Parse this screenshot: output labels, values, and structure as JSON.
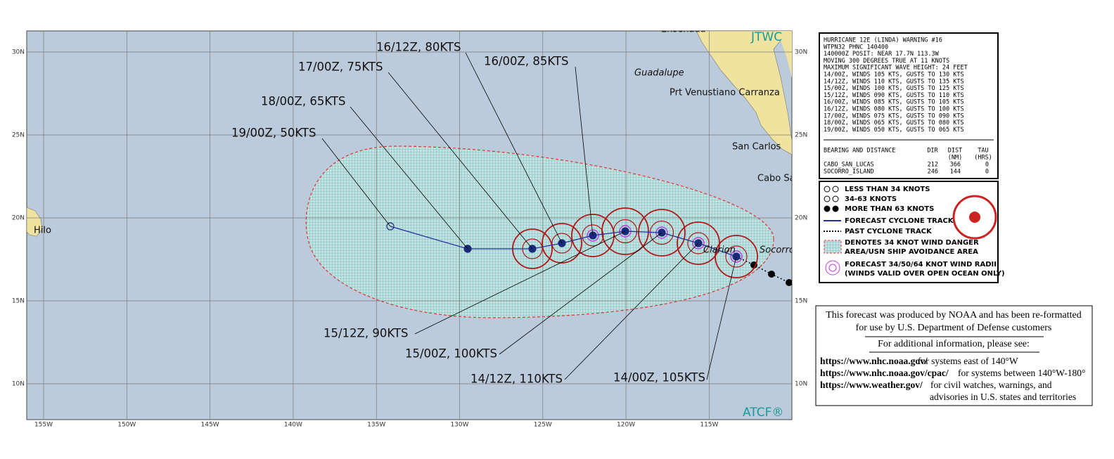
{
  "map": {
    "brand_top": "JTWC",
    "brand_bottom": "ATCF®",
    "lat_labels": [
      "30N",
      "25N",
      "20N",
      "15N",
      "10N"
    ],
    "lon_labels": [
      "155W",
      "150W",
      "145W",
      "140W",
      "135W",
      "130W",
      "125W",
      "120W",
      "115W"
    ],
    "places": [
      "Ensenada",
      "Guadalupe",
      "Prt Venustiano Carranza",
      "San Carlos",
      "Cabo Sa",
      "Hilo",
      "Clarion",
      "Socorro"
    ],
    "forecast_labels": [
      "19/00Z,  50KTS",
      "18/00Z,  65KTS",
      "17/00Z,  75KTS",
      "16/12Z,  80KTS",
      "16/00Z,  85KTS",
      "15/12Z,  90KTS",
      "15/00Z, 100KTS",
      "14/12Z, 110KTS",
      "14/00Z, 105KTS"
    ]
  },
  "warning": {
    "lines": [
      "HURRICANE 12E (LINDA) WARNING #16",
      "WTPN32 PHNC 140400",
      "140000Z POSIT: NEAR 17.7N 113.3W",
      "MOVING 300 DEGREES TRUE AT 11 KNOTS",
      "MAXIMUM SIGNIFICANT WAVE HEIGHT: 24 FEET",
      "14/00Z, WINDS 105 KTS, GUSTS TO 130 KTS",
      "14/12Z, WINDS 110 KTS, GUSTS TO 135 KTS",
      "15/00Z, WINDS 100 KTS, GUSTS TO 125 KTS",
      "15/12Z, WINDS 090 KTS, GUSTS TO 110 KTS",
      "16/00Z, WINDS 085 KTS, GUSTS TO 105 KTS",
      "16/12Z, WINDS 080 KTS, GUSTS TO 100 KTS",
      "17/00Z, WINDS 075 KTS, GUSTS TO 090 KTS",
      "18/00Z, WINDS 065 KTS, GUSTS TO 080 KTS",
      "19/00Z, WINDS 050 KTS, GUSTS TO 065 KTS"
    ],
    "table_header": [
      "BEARING AND DISTANCE",
      "DIR",
      "DIST",
      "TAU"
    ],
    "table_units": [
      "(NM)",
      "(HRS)"
    ],
    "table_rows": [
      [
        "CABO_SAN_LUCAS",
        "212",
        "366",
        "0"
      ],
      [
        "SOCORRO_ISLAND",
        "246",
        "144",
        "0"
      ]
    ]
  },
  "legend": {
    "items": [
      "LESS THAN 34 KNOTS",
      "34-63 KNOTS",
      "MORE THAN 63 KNOTS",
      "FORECAST CYCLONE TRACK",
      "PAST CYCLONE TRACK",
      "DENOTES 34 KNOT WIND DANGER",
      "AREA/USN SHIP AVOIDANCE AREA",
      "FORECAST 34/50/64 KNOT WIND RADII",
      "(WINDS VALID OVER OPEN OCEAN ONLY)"
    ]
  },
  "info": {
    "lines": [
      "This forecast was produced by NOAA and has been re-formatted",
      "for use by U.S. Department of Defense customers",
      "For additional information, please see:"
    ],
    "links": [
      {
        "url": "https://www.nhc.noaa.gov/",
        "text": "for systems east of 140°W"
      },
      {
        "url": "https://www.nhc.noaa.gov/cpac/",
        "text": "for systems between 140°W-180°"
      },
      {
        "url": "https://www.weather.gov/",
        "text": "for civil watches, warnings, and"
      }
    ],
    "continuation": "advisories in U.S. states and territories"
  }
}
